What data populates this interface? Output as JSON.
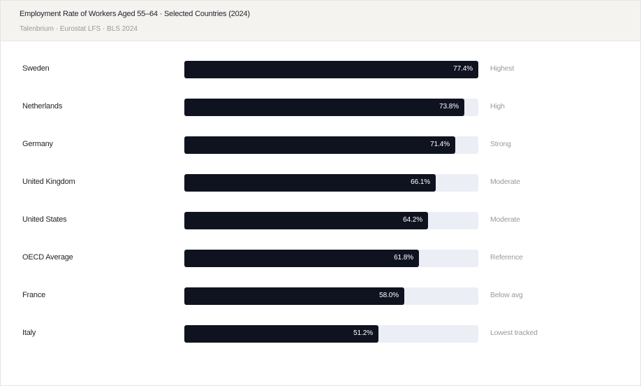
{
  "header": {
    "title": "Employment Rate of Workers Aged 55–64 · Selected Countries (2024)",
    "subtitle": "Talenbrium · Eurostat LFS · BLS 2024"
  },
  "colors": {
    "bar": "#0f1320",
    "track": "#eceef5",
    "header_bg": "#f4f3ef"
  },
  "chart_data": {
    "type": "bar",
    "orientation": "horizontal",
    "categories": [
      "Sweden",
      "Netherlands",
      "Germany",
      "United Kingdom",
      "United States",
      "OECD Average",
      "France",
      "Italy"
    ],
    "values": [
      77.4,
      73.8,
      71.4,
      66.1,
      64.2,
      61.8,
      58.0,
      51.2
    ],
    "value_labels": [
      "77.4%",
      "73.8%",
      "71.4%",
      "66.1%",
      "64.2%",
      "61.8%",
      "58.0%",
      "51.2%"
    ],
    "annotations": [
      "Highest",
      "High",
      "Strong",
      "Moderate",
      "Moderate",
      "Reference",
      "Below avg",
      "Lowest tracked"
    ],
    "xlim": [
      0,
      77.4
    ],
    "grid": false,
    "legend": "none"
  }
}
